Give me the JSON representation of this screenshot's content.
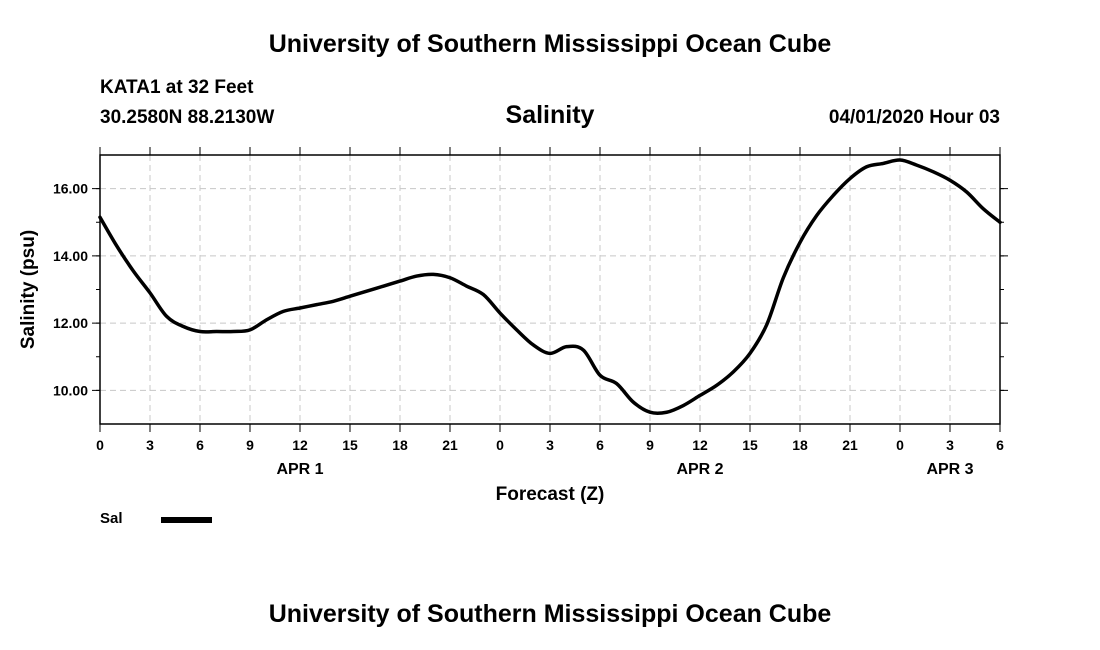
{
  "header": {
    "title": "University of Southern Mississippi Ocean Cube",
    "station": "KATA1 at 32 Feet",
    "coords": "30.2580N 88.2130W",
    "datetime": "04/01/2020 Hour 03"
  },
  "footer": {
    "title": "University of Southern Mississippi Ocean Cube"
  },
  "legend": {
    "label": "Sal",
    "color": "#000000"
  },
  "chart_data": {
    "type": "line",
    "title": "Salinity",
    "xlabel": "Forecast (Z)",
    "ylabel": "Salinity (psu)",
    "xlim": [
      0,
      54
    ],
    "ylim": [
      9,
      17
    ],
    "grid": true,
    "x_ticks": [
      0,
      3,
      6,
      9,
      12,
      15,
      18,
      21,
      24,
      27,
      30,
      33,
      36,
      39,
      42,
      45,
      48,
      51,
      54
    ],
    "x_tick_labels": [
      "0",
      "3",
      "6",
      "9",
      "12",
      "15",
      "18",
      "21",
      "0",
      "3",
      "6",
      "9",
      "12",
      "15",
      "18",
      "21",
      "0",
      "3",
      "6"
    ],
    "x_day_labels": [
      {
        "x": 12,
        "label": "APR 1"
      },
      {
        "x": 36,
        "label": "APR 2"
      },
      {
        "x": 51,
        "label": "APR 3"
      }
    ],
    "y_ticks": [
      10,
      12,
      14,
      16
    ],
    "y_tick_labels": [
      "10.00",
      "12.00",
      "14.00",
      "16.00"
    ],
    "series": [
      {
        "name": "Sal",
        "color": "#000000",
        "x": [
          0,
          1,
          2,
          3,
          4,
          5,
          6,
          7,
          8,
          9,
          10,
          11,
          12,
          13,
          14,
          15,
          16,
          17,
          18,
          19,
          20,
          21,
          22,
          23,
          24,
          25,
          26,
          27,
          28,
          29,
          30,
          31,
          32,
          33,
          34,
          35,
          36,
          37,
          38,
          39,
          40,
          41,
          42,
          43,
          44,
          45,
          46,
          47,
          48,
          49,
          50,
          51,
          52,
          53,
          54
        ],
        "values": [
          15.15,
          14.3,
          13.55,
          12.9,
          12.2,
          11.9,
          11.75,
          11.75,
          11.75,
          11.8,
          12.1,
          12.35,
          12.45,
          12.55,
          12.65,
          12.8,
          12.95,
          13.1,
          13.25,
          13.4,
          13.45,
          13.35,
          13.1,
          12.85,
          12.3,
          11.8,
          11.35,
          11.1,
          11.3,
          11.2,
          10.45,
          10.2,
          9.65,
          9.35,
          9.35,
          9.55,
          9.85,
          10.15,
          10.55,
          11.1,
          11.95,
          13.35,
          14.4,
          15.2,
          15.8,
          16.3,
          16.65,
          16.75,
          16.85,
          16.7,
          16.5,
          16.25,
          15.9,
          15.4,
          15.0
        ]
      }
    ]
  }
}
